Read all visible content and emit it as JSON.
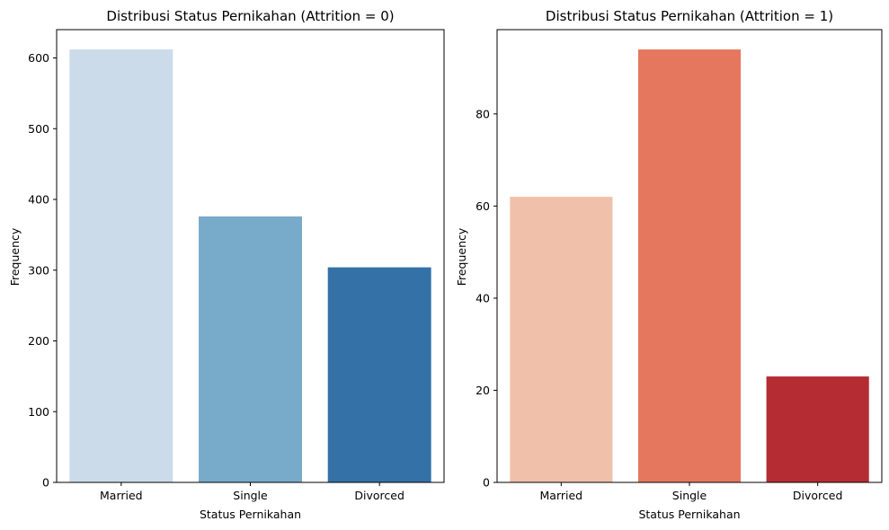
{
  "chart_data": [
    {
      "type": "bar",
      "title": "Distribusi Status Pernikahan (Attrition = 0)",
      "xlabel": "Status Pernikahan",
      "ylabel": "Frequency",
      "categories": [
        "Married",
        "Single",
        "Divorced"
      ],
      "values": [
        612,
        376,
        304
      ],
      "colors": [
        "#cbdbea",
        "#78aac9",
        "#3471a6"
      ],
      "ylim": [
        0,
        640
      ],
      "yticks": [
        0,
        100,
        200,
        300,
        400,
        500,
        600
      ],
      "grid": false,
      "legend": "none"
    },
    {
      "type": "bar",
      "title": "Distribusi Status Pernikahan (Attrition = 1)",
      "xlabel": "Status Pernikahan",
      "ylabel": "Frequency",
      "categories": [
        "Married",
        "Single",
        "Divorced"
      ],
      "values": [
        62,
        94,
        23
      ],
      "colors": [
        "#f0c0ab",
        "#e6775f",
        "#b52c32"
      ],
      "ylim": [
        0,
        98.3
      ],
      "yticks": [
        0,
        20,
        40,
        60,
        80
      ],
      "grid": false,
      "legend": "none"
    }
  ]
}
